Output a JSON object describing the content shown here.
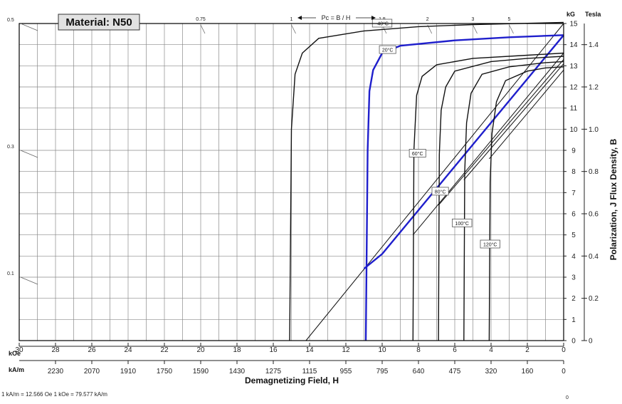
{
  "chart_data": {
    "type": "line",
    "title": "Material: N50",
    "xlabel": "Demagnetizing Field, H",
    "ylabel": "Polarization, J    Flux Density, B",
    "x_units": {
      "koe": "kOe",
      "kam": "kA/m"
    },
    "y_units": {
      "kg": "kG",
      "tesla": "Tesla"
    },
    "conversion_note": "1 kA/m = 12.566 Oe    1 kOe = 79.577 kA/m",
    "xlim_koe": [
      30,
      0
    ],
    "ylim_kg": [
      0,
      15
    ],
    "x_ticks_koe": [
      "30",
      "28",
      "26",
      "24",
      "22",
      "20",
      "18",
      "16",
      "14",
      "12",
      "10",
      "8",
      "6",
      "4",
      "2",
      "0"
    ],
    "x_ticks_kam": [
      "2230",
      "2070",
      "1910",
      "1750",
      "1590",
      "1430",
      "1275",
      "1115",
      "955",
      "795",
      "640",
      "475",
      "320",
      "160",
      "0"
    ],
    "y_ticks_kg": [
      "0",
      "1",
      "2",
      "3",
      "4",
      "5",
      "6",
      "7",
      "8",
      "9",
      "10",
      "11",
      "12",
      "13",
      "14",
      "15"
    ],
    "y_ticks_tesla": [
      "0",
      "0.2",
      "0.4",
      "0.6",
      "0.8",
      "1.0",
      "1.2",
      "1.4"
    ],
    "left_scale_labels": [
      "0.5",
      "0.3",
      "0.1"
    ],
    "pc_header": "Pc = B / H",
    "pc_ticks": [
      "0.75",
      "1",
      "1.5",
      "2",
      "3",
      "5"
    ],
    "grid": true,
    "series": [
      {
        "name": "-40°C",
        "highlight": false,
        "points": [
          [
            15.1,
            0
          ],
          [
            15.0,
            10
          ],
          [
            14.8,
            12.6
          ],
          [
            14.4,
            13.6
          ],
          [
            13.5,
            14.3
          ],
          [
            11,
            14.65
          ],
          [
            8,
            14.85
          ],
          [
            5,
            14.95
          ],
          [
            0,
            15.05
          ]
        ]
      },
      {
        "name": "20°C",
        "highlight": true,
        "points": [
          [
            10.9,
            0
          ],
          [
            10.8,
            9
          ],
          [
            10.7,
            11.8
          ],
          [
            10.5,
            12.8
          ],
          [
            10.0,
            13.6
          ],
          [
            9,
            13.95
          ],
          [
            6,
            14.2
          ],
          [
            3,
            14.35
          ],
          [
            0,
            14.45
          ]
        ]
      },
      {
        "name": "60°C",
        "highlight": false,
        "points": [
          [
            8.3,
            0
          ],
          [
            8.25,
            9
          ],
          [
            8.1,
            11.6
          ],
          [
            7.8,
            12.5
          ],
          [
            7,
            13.05
          ],
          [
            5,
            13.35
          ],
          [
            2,
            13.5
          ],
          [
            0,
            13.6
          ]
        ]
      },
      {
        "name": "80°C",
        "highlight": false,
        "points": [
          [
            6.9,
            0
          ],
          [
            6.85,
            8.8
          ],
          [
            6.75,
            10.9
          ],
          [
            6.5,
            12
          ],
          [
            6,
            12.75
          ],
          [
            4,
            13.2
          ],
          [
            2,
            13.35
          ],
          [
            0,
            13.45
          ]
        ]
      },
      {
        "name": "100°C",
        "highlight": false,
        "points": [
          [
            5.5,
            0
          ],
          [
            5.45,
            8
          ],
          [
            5.35,
            10.3
          ],
          [
            5.1,
            11.7
          ],
          [
            4.5,
            12.6
          ],
          [
            3,
            12.95
          ],
          [
            1,
            13.15
          ],
          [
            0,
            13.2
          ]
        ]
      },
      {
        "name": "120°C",
        "highlight": false,
        "points": [
          [
            4.1,
            0
          ],
          [
            4.05,
            7.5
          ],
          [
            3.95,
            9.8
          ],
          [
            3.7,
            11.3
          ],
          [
            3.2,
            12.3
          ],
          [
            2,
            12.75
          ],
          [
            1,
            12.9
          ],
          [
            0,
            12.95
          ]
        ]
      }
    ],
    "b_lines": [
      {
        "temp": "-40°C",
        "points": [
          [
            14.2,
            0
          ],
          [
            0,
            15.0
          ]
        ]
      },
      {
        "temp": "20°C",
        "points": [
          [
            11.0,
            3.4
          ],
          [
            10.0,
            4.1
          ],
          [
            0,
            14.45
          ]
        ]
      },
      {
        "temp": "60°C",
        "points": [
          [
            8.3,
            5.0
          ],
          [
            0,
            13.6
          ]
        ]
      },
      {
        "temp": "80°C",
        "points": [
          [
            6.9,
            6.4
          ],
          [
            0,
            13.3
          ]
        ]
      },
      {
        "temp": "100°C",
        "points": [
          [
            5.5,
            7.6
          ],
          [
            0,
            13.1
          ]
        ]
      },
      {
        "temp": "120°C",
        "points": [
          [
            4.1,
            8.6
          ],
          [
            0,
            12.8
          ]
        ]
      }
    ],
    "temperature_labels": [
      {
        "text": "-40°C",
        "x": 10.0,
        "y": 15.0
      },
      {
        "text": "20°C",
        "x": 9.7,
        "y": 13.75
      },
      {
        "text": "60°C",
        "x": 8.05,
        "y": 8.85
      },
      {
        "text": "80°C",
        "x": 6.8,
        "y": 7.05
      },
      {
        "text": "100°C",
        "x": 5.6,
        "y": 5.55
      },
      {
        "text": "120°C",
        "x": 4.05,
        "y": 4.55
      }
    ]
  }
}
